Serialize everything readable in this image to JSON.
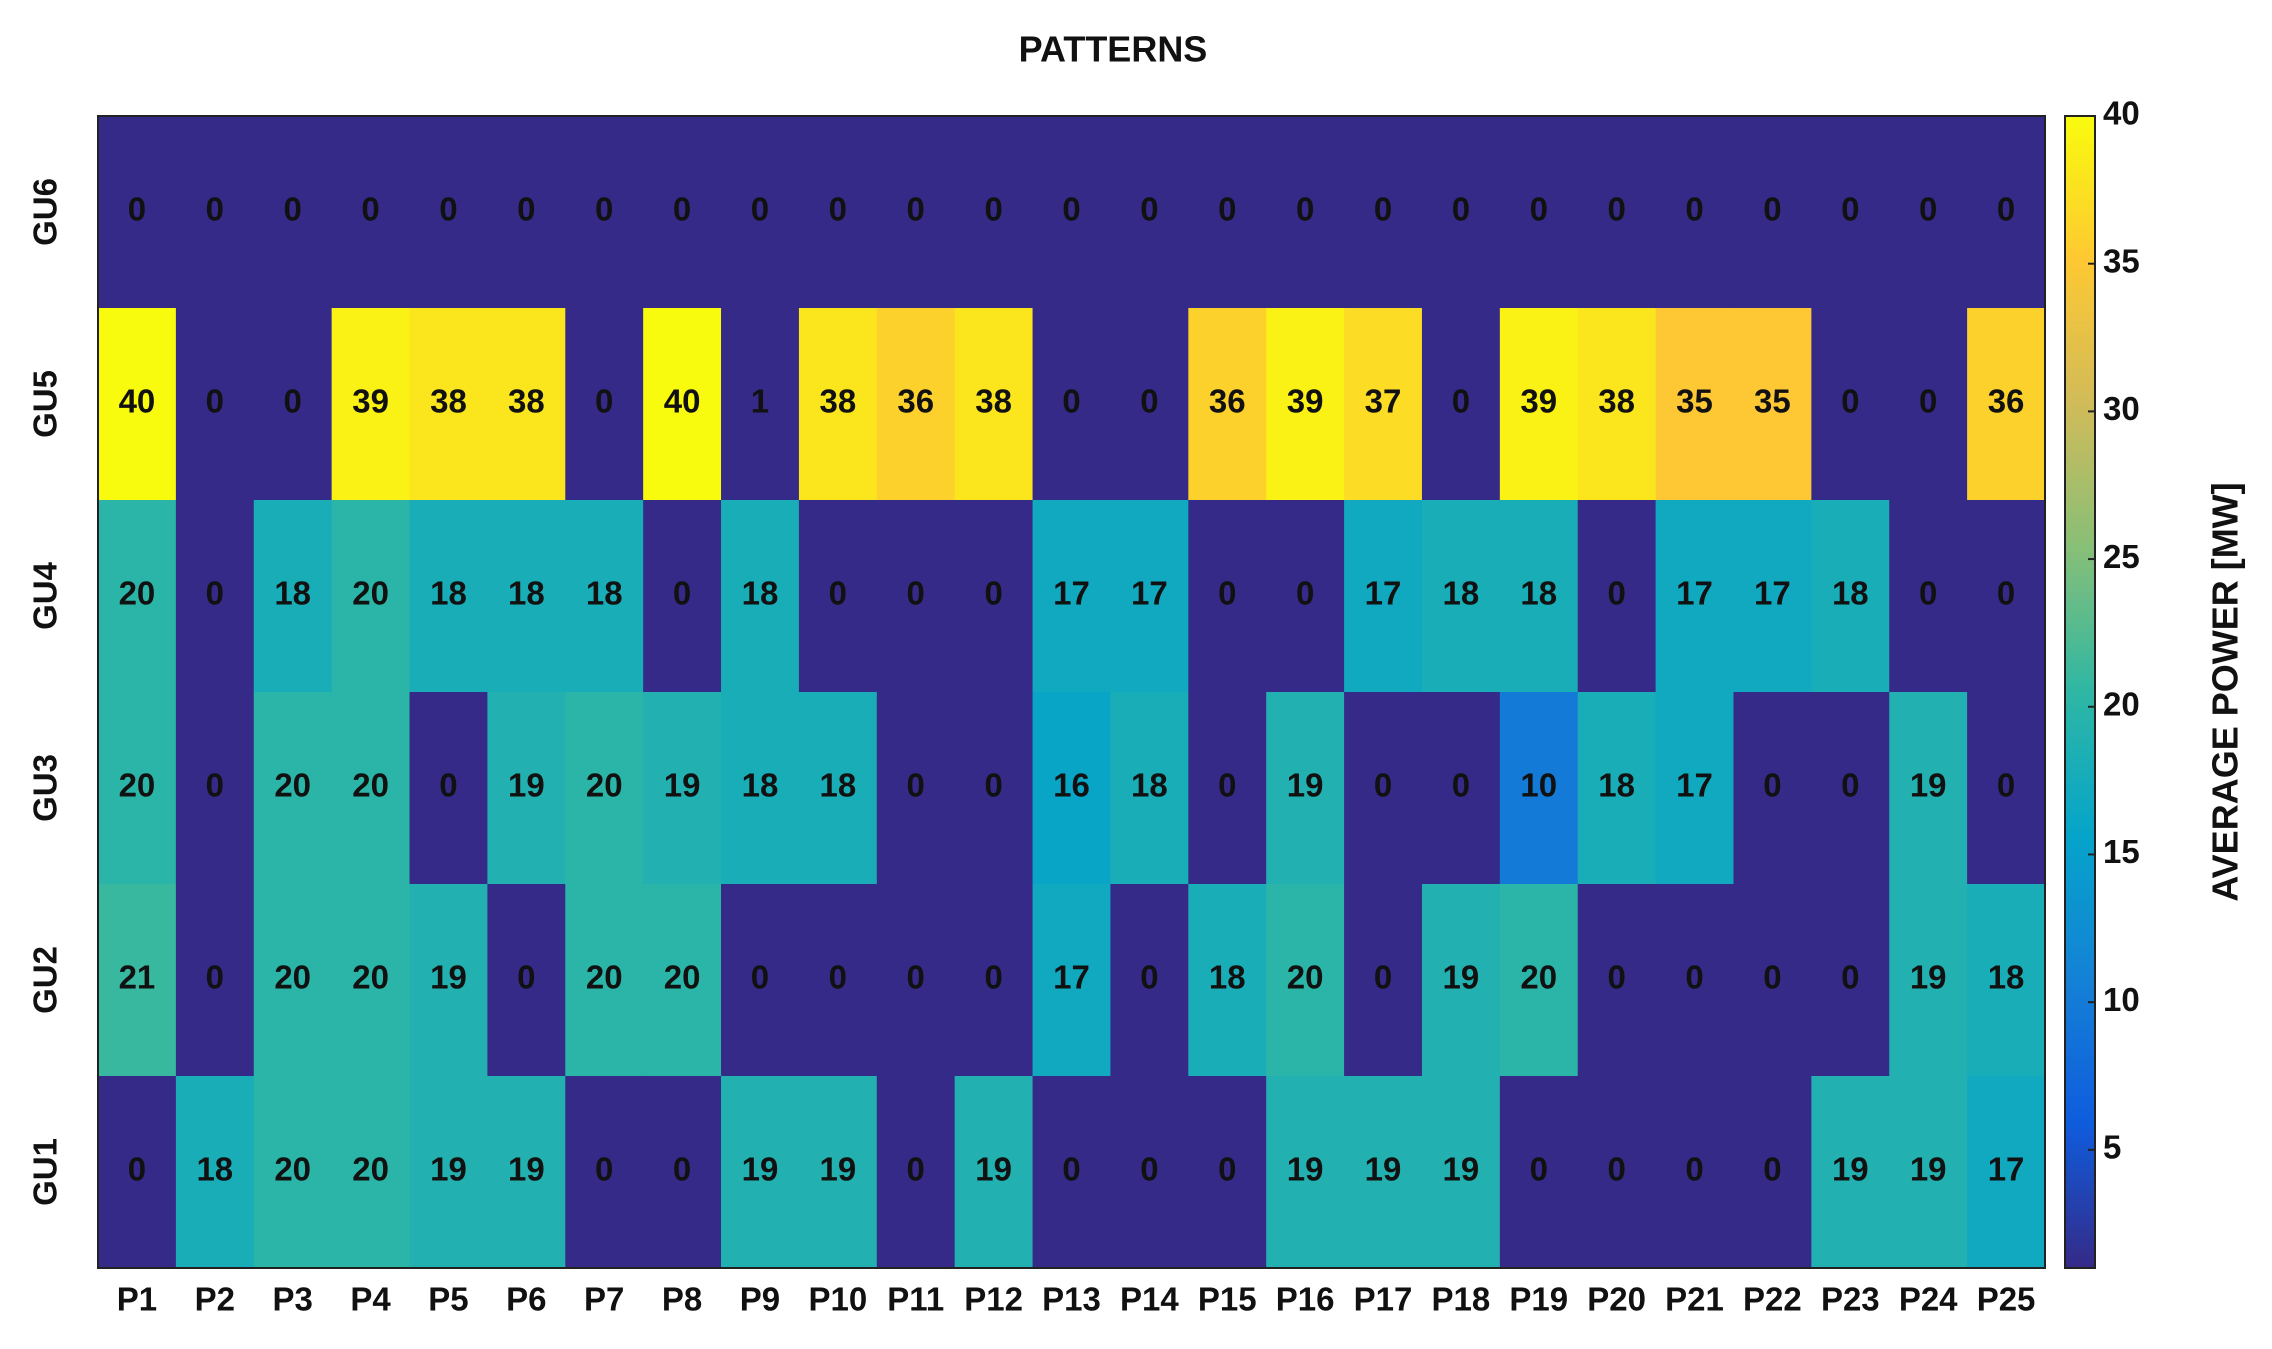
{
  "chart_data": {
    "type": "heatmap",
    "title": "PATTERNS",
    "categories": [
      "P1",
      "P2",
      "P3",
      "P4",
      "P5",
      "P6",
      "P7",
      "P8",
      "P9",
      "P10",
      "P11",
      "P12",
      "P13",
      "P14",
      "P15",
      "P16",
      "P17",
      "P18",
      "P19",
      "P20",
      "P21",
      "P22",
      "P23",
      "P24",
      "P25"
    ],
    "rows": [
      "GU6",
      "GU5",
      "GU4",
      "GU3",
      "GU2",
      "GU1"
    ],
    "values": [
      [
        0,
        0,
        0,
        0,
        0,
        0,
        0,
        0,
        0,
        0,
        0,
        0,
        0,
        0,
        0,
        0,
        0,
        0,
        0,
        0,
        0,
        0,
        0,
        0,
        0
      ],
      [
        40,
        0,
        0,
        39,
        38,
        38,
        0,
        40,
        1,
        38,
        36,
        38,
        0,
        0,
        36,
        39,
        37,
        0,
        39,
        38,
        35,
        35,
        0,
        0,
        36
      ],
      [
        20,
        0,
        18,
        20,
        18,
        18,
        18,
        0,
        18,
        0,
        0,
        0,
        17,
        17,
        0,
        0,
        17,
        18,
        18,
        0,
        17,
        17,
        18,
        0,
        0
      ],
      [
        20,
        0,
        20,
        20,
        0,
        19,
        20,
        19,
        18,
        18,
        0,
        0,
        16,
        18,
        0,
        19,
        0,
        0,
        10,
        18,
        17,
        0,
        0,
        19,
        0
      ],
      [
        21,
        0,
        20,
        20,
        19,
        0,
        20,
        20,
        0,
        0,
        0,
        0,
        17,
        0,
        18,
        20,
        0,
        19,
        20,
        0,
        0,
        0,
        0,
        19,
        18
      ],
      [
        0,
        18,
        20,
        20,
        19,
        19,
        0,
        0,
        19,
        19,
        0,
        19,
        0,
        0,
        0,
        19,
        19,
        19,
        0,
        0,
        0,
        0,
        19,
        19,
        17
      ]
    ],
    "colorbar_label": "AVERAGE POWER [MW]",
    "clim": [
      1,
      40
    ],
    "cticks": [
      5,
      10,
      15,
      20,
      25,
      30,
      35,
      40
    ],
    "colormap": [
      "#352a87",
      "#0f5cdd",
      "#1481d6",
      "#06a4ca",
      "#2eb7a4",
      "#87bf77",
      "#d1bb59",
      "#fec832",
      "#f9fb0e"
    ]
  }
}
